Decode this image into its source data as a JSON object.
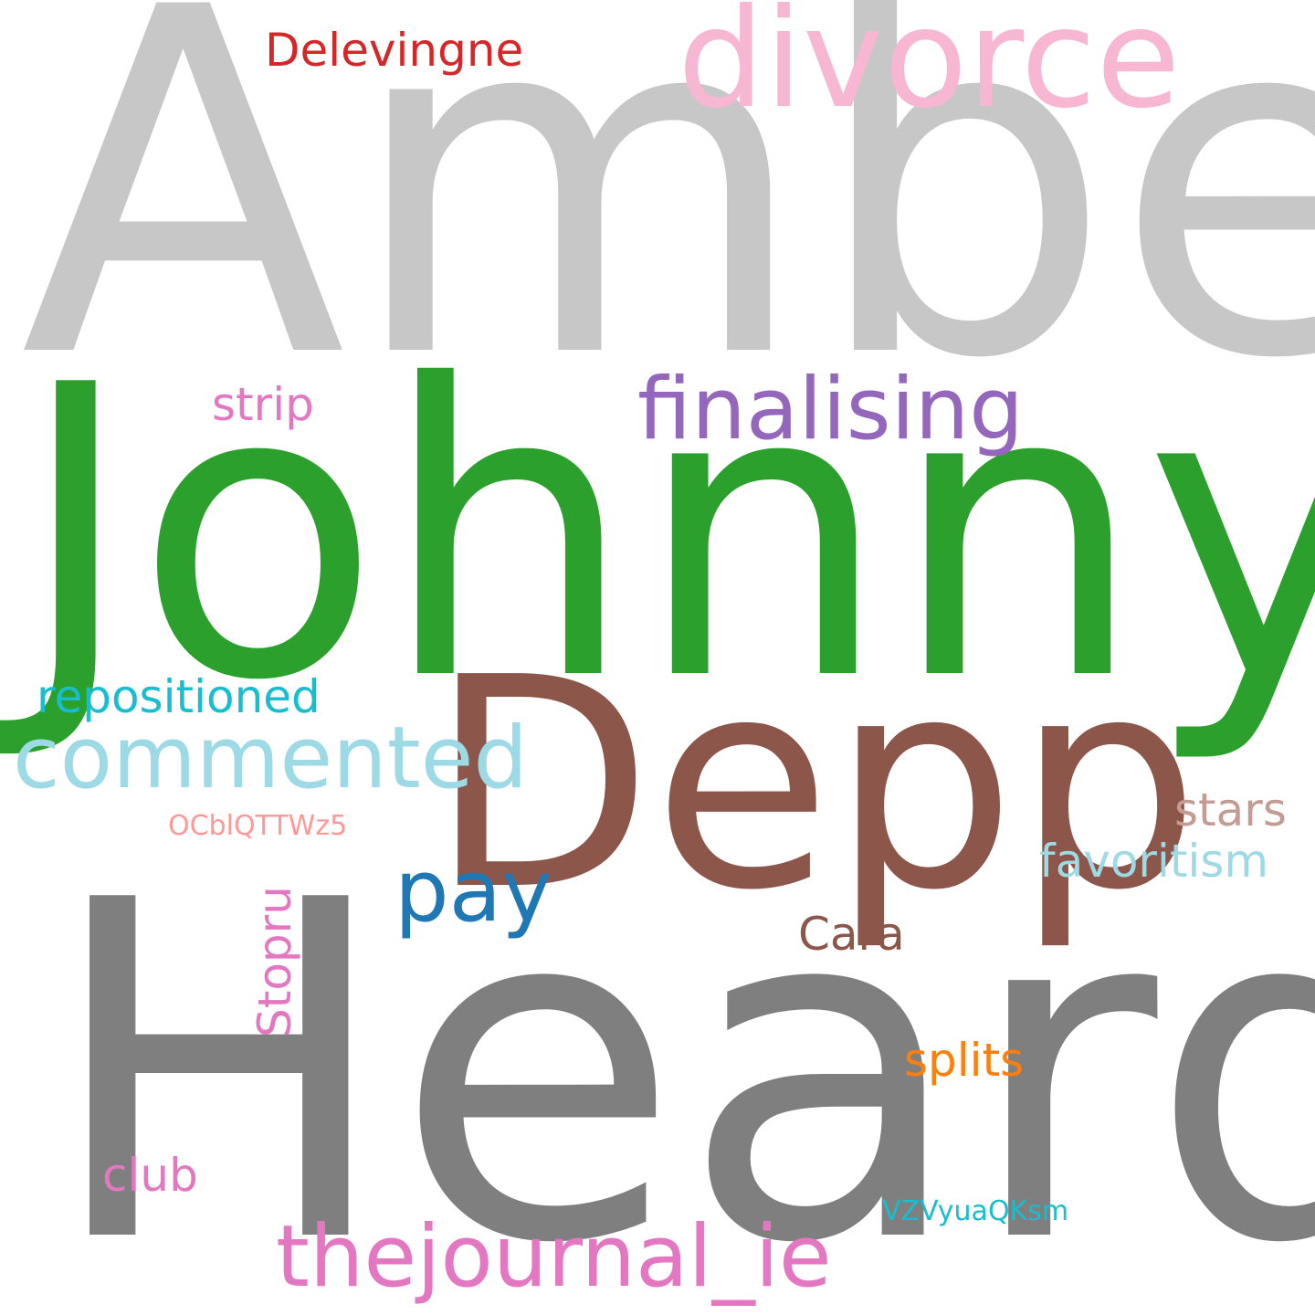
{
  "words": {
    "amber": {
      "text": "Amber",
      "color": "#c7c7c7"
    },
    "johnny": {
      "text": "Johnny",
      "color": "#2ca02c"
    },
    "depp": {
      "text": "Depp",
      "color": "#8c564b"
    },
    "heard": {
      "text": "Heard",
      "color": "#7f7f7f"
    },
    "divorce": {
      "text": "divorce",
      "color": "#f7b6d2"
    },
    "delevingne": {
      "text": "Delevingne",
      "color": "#d62728"
    },
    "finalising": {
      "text": "finalising",
      "color": "#9467bd"
    },
    "strip": {
      "text": "strip",
      "color": "#e377c2"
    },
    "repositioned": {
      "text": "repositioned",
      "color": "#17becf"
    },
    "commented": {
      "text": "commented",
      "color": "#9edae5"
    },
    "code1": {
      "text": "OCblQTTWz5",
      "color": "#ff9896"
    },
    "pay": {
      "text": "pay",
      "color": "#1f77b4"
    },
    "stopru": {
      "text": "Stopru",
      "color": "#e377c2"
    },
    "stars": {
      "text": "stars",
      "color": "#c49c94"
    },
    "favoritism": {
      "text": "favoritism",
      "color": "#9edae5"
    },
    "cara": {
      "text": "Cara",
      "color": "#8c564b"
    },
    "splits": {
      "text": "splits",
      "color": "#ff7f0e"
    },
    "club": {
      "text": "club",
      "color": "#e377c2"
    },
    "code2": {
      "text": "VZVyuaQKsm",
      "color": "#17becf"
    },
    "thejournal": {
      "text": "thejournal_ie",
      "color": "#e377c2"
    }
  }
}
